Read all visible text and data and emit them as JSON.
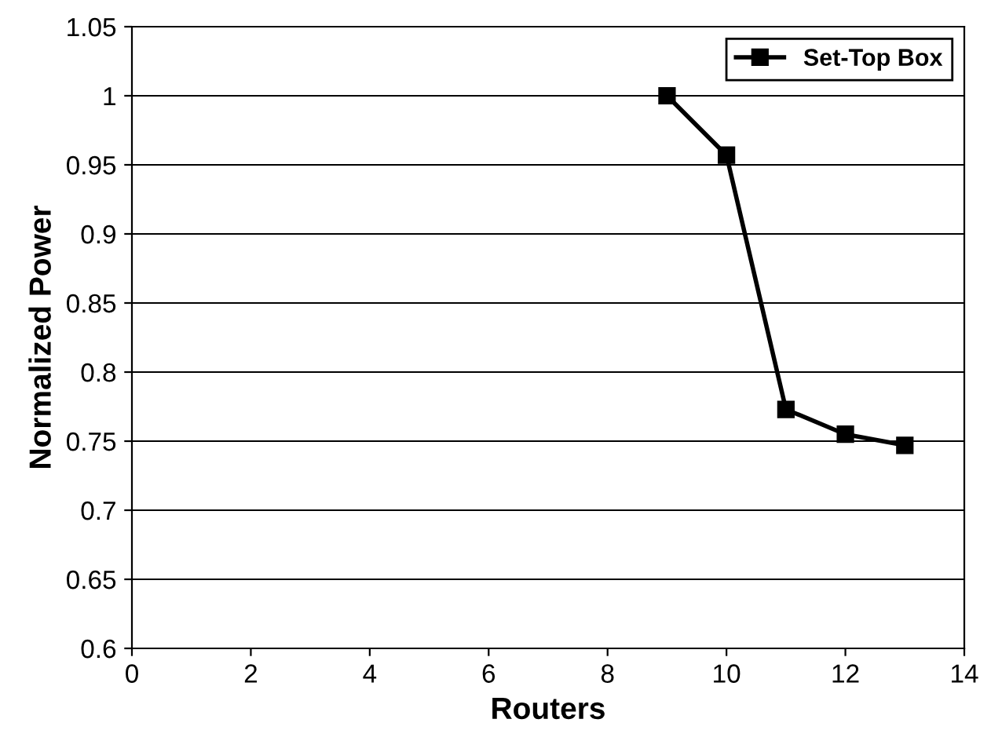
{
  "chart_data": {
    "type": "line",
    "xlabel": "Routers",
    "ylabel": "Normalized Power",
    "series": [
      {
        "name": "Set-Top Box",
        "color": "#000000",
        "x": [
          9,
          10,
          11,
          12,
          13
        ],
        "values": [
          1.0,
          0.957,
          0.773,
          0.755,
          0.747
        ]
      }
    ],
    "xlim": [
      0,
      14
    ],
    "xticks": [
      0,
      2,
      4,
      6,
      8,
      10,
      12,
      14
    ],
    "ylim": [
      0.6,
      1.05
    ],
    "yticks": [
      0.6,
      0.65,
      0.7,
      0.75,
      0.8,
      0.85,
      0.9,
      0.95,
      1,
      1.05
    ],
    "grid": "y",
    "legend": "top right",
    "marker": "square",
    "line_style": "solid"
  }
}
